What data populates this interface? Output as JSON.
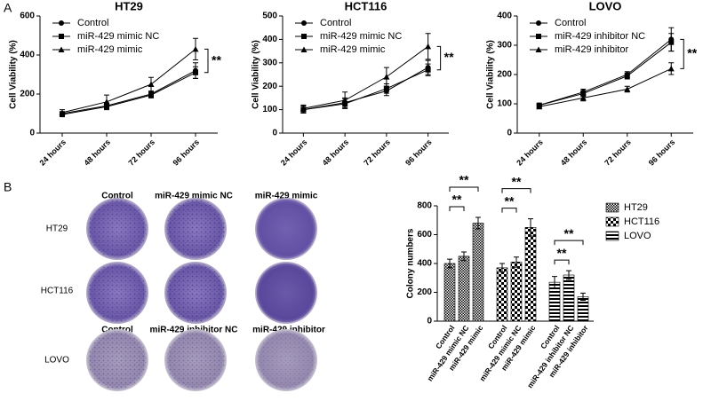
{
  "panel_labels": [
    "A",
    "B"
  ],
  "chart_data": [
    {
      "type": "line",
      "title": "HT29",
      "y_label": "Cell Viability (%)",
      "categories": [
        "24 hours",
        "48 hours",
        "72 hours",
        "96 hours"
      ],
      "ylim": [
        0,
        600
      ],
      "yticks": [
        0,
        200,
        400,
        600
      ],
      "series": [
        {
          "name": "Control",
          "color": "#000000",
          "marker": "circle",
          "values": [
            100,
            140,
            200,
            320
          ],
          "errors": [
            10,
            15,
            15,
            40
          ]
        },
        {
          "name": "miR-429 mimic NC",
          "color": "#000000",
          "marker": "square",
          "values": [
            95,
            135,
            195,
            310
          ],
          "errors": [
            10,
            15,
            15,
            30
          ]
        },
        {
          "name": "miR-429 mimic",
          "color": "#000000",
          "marker": "triangle",
          "values": [
            105,
            160,
            250,
            430
          ],
          "errors": [
            15,
            35,
            35,
            55
          ]
        }
      ],
      "annotation": "**"
    },
    {
      "type": "line",
      "title": "HCT116",
      "y_label": "Cell Viability (%)",
      "categories": [
        "24 hours",
        "48 hours",
        "72 hours",
        "96 hours"
      ],
      "ylim": [
        0,
        500
      ],
      "yticks": [
        0,
        100,
        200,
        300,
        400,
        500
      ],
      "series": [
        {
          "name": "Control",
          "color": "#000000",
          "marker": "circle",
          "values": [
            100,
            130,
            180,
            280
          ],
          "errors": [
            15,
            20,
            20,
            30
          ]
        },
        {
          "name": "miR-429 mimic NC",
          "color": "#000000",
          "marker": "square",
          "values": [
            100,
            125,
            190,
            270
          ],
          "errors": [
            15,
            20,
            20,
            25
          ]
        },
        {
          "name": "miR-429 mimic",
          "color": "#000000",
          "marker": "triangle",
          "values": [
            105,
            140,
            240,
            370
          ],
          "errors": [
            15,
            35,
            40,
            55
          ]
        }
      ],
      "annotation": "**"
    },
    {
      "type": "line",
      "title": "LOVO",
      "y_label": "Cell Viability (%)",
      "categories": [
        "24 hours",
        "48 hours",
        "72 hours",
        "96 hours"
      ],
      "ylim": [
        0,
        400
      ],
      "yticks": [
        0,
        100,
        200,
        300,
        400
      ],
      "series": [
        {
          "name": "Control",
          "color": "#000000",
          "marker": "circle",
          "values": [
            95,
            140,
            200,
            320
          ],
          "errors": [
            5,
            10,
            10,
            40
          ]
        },
        {
          "name": "miR-429 inhibitor NC",
          "color": "#000000",
          "marker": "square",
          "values": [
            95,
            135,
            195,
            310
          ],
          "errors": [
            5,
            10,
            10,
            30
          ]
        },
        {
          "name": "miR-429 inhibitor",
          "color": "#000000",
          "marker": "triangle",
          "values": [
            90,
            120,
            150,
            220
          ],
          "errors": [
            5,
            10,
            10,
            20
          ]
        }
      ],
      "annotation": "**"
    },
    {
      "type": "bar",
      "y_label": "Colony numbers",
      "categories": [
        "Control",
        "miR-429 mimic NC",
        "miR-429 mimic",
        "Control",
        "miR-429 mimic NC",
        "miR-429 mimic",
        "Control",
        "miR-429 inhibitor NC",
        "miR-429 inhibitor"
      ],
      "ylim": [
        0,
        800
      ],
      "yticks": [
        0,
        200,
        400,
        600,
        800
      ],
      "series": [
        {
          "name": "HT29",
          "pattern": "fine",
          "values": [
            400,
            450,
            680,
            null,
            null,
            null,
            null,
            null,
            null
          ],
          "errors": [
            30,
            30,
            40,
            null,
            null,
            null,
            null,
            null,
            null
          ]
        },
        {
          "name": "HCT116",
          "pattern": "checker",
          "values": [
            null,
            null,
            null,
            370,
            410,
            650,
            null,
            null,
            null
          ],
          "errors": [
            null,
            null,
            null,
            30,
            35,
            60,
            null,
            null,
            null
          ]
        },
        {
          "name": "LOVO",
          "pattern": "stripes",
          "values": [
            null,
            null,
            null,
            null,
            null,
            null,
            270,
            320,
            170
          ],
          "errors": [
            null,
            null,
            null,
            null,
            null,
            null,
            40,
            30,
            25
          ]
        }
      ],
      "annotations": [
        {
          "text": "**",
          "pair": [
            0,
            1
          ]
        },
        {
          "text": "**",
          "pair": [
            0,
            2
          ]
        },
        {
          "text": "**",
          "pair": [
            3,
            4
          ]
        },
        {
          "text": "**",
          "pair": [
            3,
            5
          ]
        },
        {
          "text": "**",
          "pair": [
            6,
            7
          ]
        },
        {
          "text": "**",
          "pair": [
            6,
            8
          ]
        }
      ]
    }
  ],
  "colony_plates": {
    "columns": [
      "Control",
      "miR-429 mimic NC",
      "miR-429 mimic"
    ],
    "rows": [
      "HT29",
      "HCT116",
      "LOVO"
    ],
    "lovo_columns": [
      "Control",
      "miR-429 inhibitor NC",
      "miR-429 inhibitor"
    ]
  }
}
